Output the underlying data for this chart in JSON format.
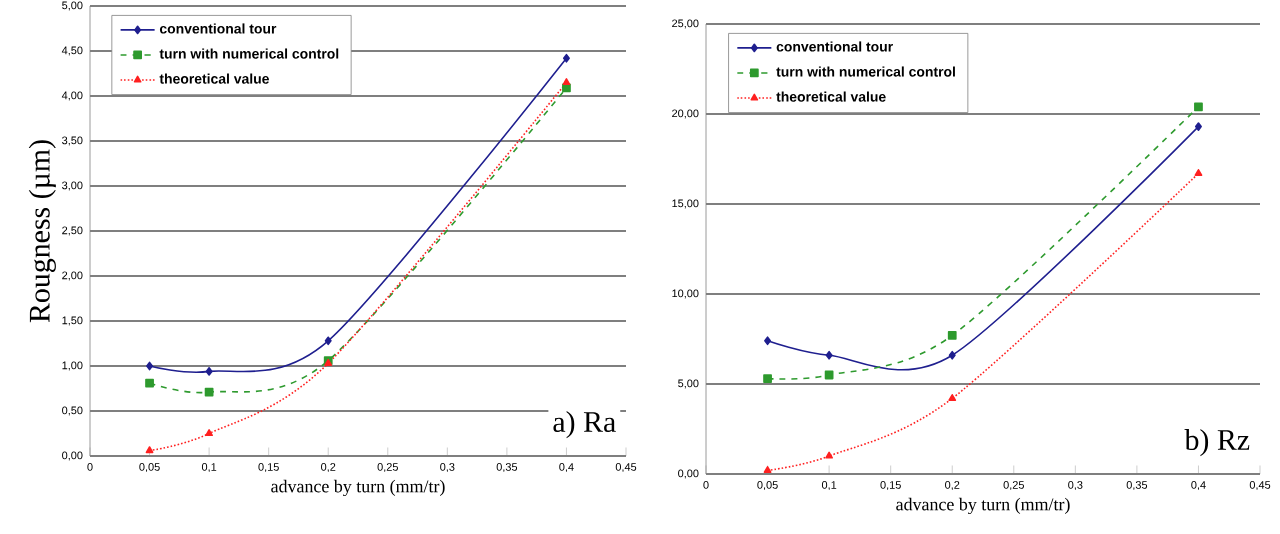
{
  "chart_data": [
    {
      "type": "line",
      "xlabel": "advance by turn (mm/tr)",
      "ylabel": "Rougness (µm)",
      "x": [
        0.05,
        0.1,
        0.2,
        0.4
      ],
      "series": [
        {
          "name": "conventional tour",
          "color": "#1f1f8f",
          "values": [
            1.0,
            0.94,
            1.28,
            4.42
          ],
          "marker": "diamond",
          "line_style": "solid"
        },
        {
          "name": "turn with numerical control",
          "color": "#2e9a2e",
          "values": [
            0.81,
            0.71,
            1.06,
            4.09
          ],
          "marker": "square",
          "line_style": "dashed"
        },
        {
          "name": "theoretical value",
          "color": "#ff2020",
          "values": [
            0.06,
            0.25,
            1.03,
            4.15
          ],
          "marker": "triangle",
          "line_style": "dotted"
        }
      ],
      "xlim": [
        0,
        0.45
      ],
      "ylim": [
        0,
        5
      ],
      "xticks": [
        0,
        {
          "value": 0.05,
          "label": "0,05"
        },
        {
          "value": 0.1,
          "label": "0,1"
        },
        {
          "value": 0.15,
          "label": "0,15"
        },
        {
          "value": 0.2,
          "label": "0,2"
        },
        {
          "value": 0.25,
          "label": "0,25"
        },
        {
          "value": 0.3,
          "label": "0,3"
        },
        {
          "value": 0.35,
          "label": "0,35"
        },
        {
          "value": 0.4,
          "label": "0,4"
        },
        {
          "value": 0.45,
          "label": "0,45"
        }
      ],
      "yticks": [
        {
          "value": 0,
          "label": "0,00"
        },
        {
          "value": 0.5,
          "label": "0,50"
        },
        {
          "value": 1,
          "label": "1,00"
        },
        {
          "value": 1.5,
          "label": "1,50"
        },
        {
          "value": 2,
          "label": "2,00"
        },
        {
          "value": 2.5,
          "label": "2,50"
        },
        {
          "value": 3,
          "label": "3,00"
        },
        {
          "value": 3.5,
          "label": "3,50"
        },
        {
          "value": 4,
          "label": "4,00"
        },
        {
          "value": 4.5,
          "label": "4,50"
        },
        {
          "value": 5,
          "label": "5,00"
        }
      ],
      "grid": "y",
      "legend": "top left",
      "annotations": [
        "a) Ra"
      ]
    },
    {
      "type": "line",
      "xlabel": "advance by turn (mm/tr)",
      "x": [
        0.05,
        0.1,
        0.2,
        0.4
      ],
      "series": [
        {
          "name": "conventional tour",
          "color": "#1f1f8f",
          "values": [
            7.4,
            6.6,
            6.6,
            19.3
          ],
          "marker": "diamond",
          "line_style": "solid"
        },
        {
          "name": "turn with numerical control",
          "color": "#2e9a2e",
          "values": [
            5.3,
            5.5,
            7.7,
            20.4
          ],
          "marker": "square",
          "line_style": "dashed"
        },
        {
          "name": "theoretical value",
          "color": "#ff2020",
          "values": [
            0.2,
            1.0,
            4.2,
            16.7
          ],
          "marker": "triangle",
          "line_style": "dotted"
        }
      ],
      "xlim": [
        0,
        0.45
      ],
      "ylim": [
        0,
        25
      ],
      "xticks": [
        0,
        {
          "value": 0.05,
          "label": "0,05"
        },
        {
          "value": 0.1,
          "label": "0,1"
        },
        {
          "value": 0.15,
          "label": "0,15"
        },
        {
          "value": 0.2,
          "label": "0,2"
        },
        {
          "value": 0.25,
          "label": "0,25"
        },
        {
          "value": 0.3,
          "label": "0,3"
        },
        {
          "value": 0.35,
          "label": "0,35"
        },
        {
          "value": 0.4,
          "label": "0,4"
        },
        {
          "value": 0.45,
          "label": "0,45"
        }
      ],
      "yticks": [
        {
          "value": 0,
          "label": "0,00"
        },
        {
          "value": 5,
          "label": "5,00"
        },
        {
          "value": 10,
          "label": "10,00"
        },
        {
          "value": 15,
          "label": "15,00"
        },
        {
          "value": 20,
          "label": "20,00"
        },
        {
          "value": 25,
          "label": "25,00"
        }
      ],
      "grid": "y",
      "legend": "top left",
      "annotations": [
        "b) Rz"
      ]
    }
  ]
}
